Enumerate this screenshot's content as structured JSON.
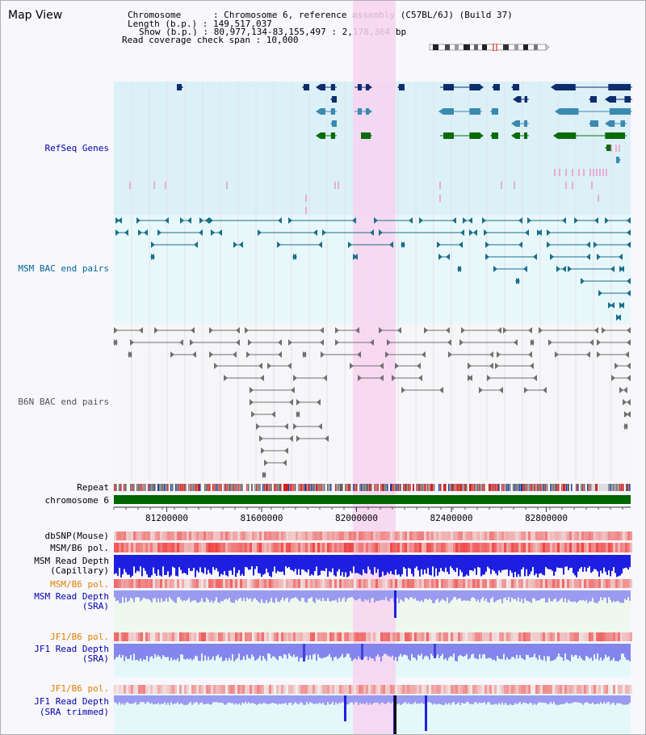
{
  "view_title": "Map View",
  "info": {
    "chromosome": "Chromosome      : Chromosome 6, reference assembly (C57BL/6J) (Build 37)",
    "length": "Length (b.p.) : 149,517,037",
    "show": "Show (b.p.) : 80,977,134-83,155,497 : 2,178,364 bp",
    "coverage": "Read coverage check span : 10,000"
  },
  "tracks": {
    "refseq": "RefSeq Genes",
    "msm_bac": "MSM BAC end pairs",
    "b6n_bac": "B6N BAC end pairs",
    "repeat": "Repeat",
    "chromosome": "chromosome 6",
    "dbsnp": "dbSNP(Mouse)",
    "msm_b6_pol_1": "MSM/B6 pol.",
    "msm_depth_cap_1": "MSM Read Depth",
    "msm_depth_cap_2": "(Capillary)",
    "msm_b6_pol_2": "MSM/B6 pol.",
    "msm_depth_sra_1": "MSM Read Depth",
    "msm_depth_sra_2": "(SRA)",
    "jf1_b6_pol_1": "JF1/B6 pol.",
    "jf1_depth_sra_1": "JF1 Read Depth",
    "jf1_depth_sra_2": "(SRA)",
    "jf1_b6_pol_2": "JF1/B6 pol.",
    "jf1_depth_trim_1": "JF1 Read Depth",
    "jf1_depth_trim_2": "(SRA trimmed)"
  },
  "axis": {
    "start": 80977134,
    "end": 83155497,
    "ticks": [
      "81200000",
      "81600000",
      "82000000",
      "82400000",
      "82800000"
    ]
  },
  "highlight": {
    "start": 81985000,
    "end": 82165000
  },
  "colors": {
    "refseq_bg": "#dcf0f8",
    "msm_bg": "#e8f8fa",
    "gene_dark": "#0d2d6e",
    "gene_mid": "#3a8ab0",
    "gene_green": "#0b6b0b",
    "msm_pair": "#1a6e8a",
    "b6n_pair": "#707070",
    "highlight": "#f8d4f0",
    "depth_blue": "#2020e0",
    "depth_light": "#9090f0",
    "pol_red": "#ee2020",
    "chrom_green": "#006600",
    "label_blue": "#0000aa",
    "label_teal": "#006699",
    "label_orange": "#e08000"
  }
}
